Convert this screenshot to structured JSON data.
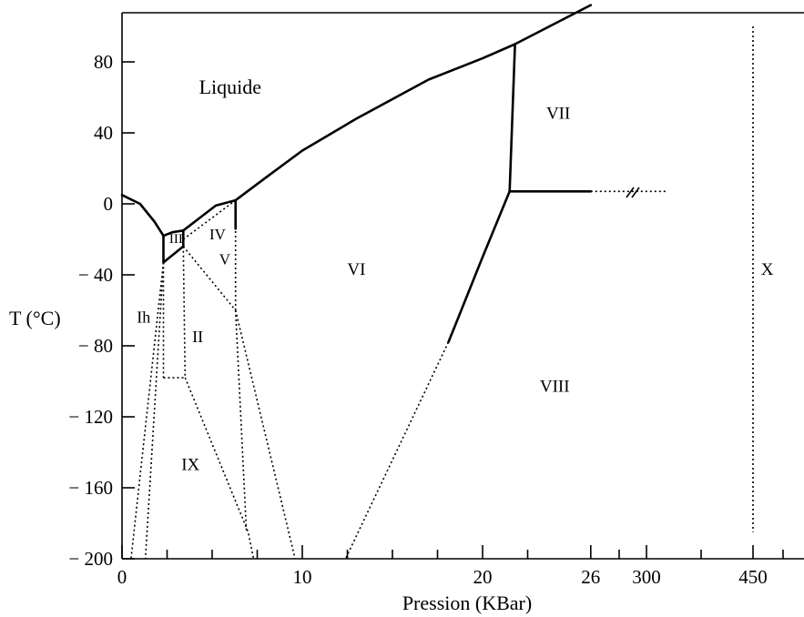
{
  "chart_data": {
    "type": "line",
    "title": "",
    "xlabel": "Pression (KBar)",
    "ylabel": "T (°C)",
    "ylim": [
      -200,
      105
    ],
    "y_ticks": [
      80,
      40,
      0,
      -40,
      -80,
      -120,
      -160,
      -200
    ],
    "y_tick_labels": [
      "80",
      "40",
      "0",
      "− 40",
      "− 80",
      "− 120",
      "− 160",
      "− 200"
    ],
    "x_ticks": [
      0,
      10,
      20,
      26,
      300,
      450
    ],
    "x_tick_labels": [
      "0",
      "10",
      "20",
      "26",
      "300",
      "450"
    ],
    "x_axis_note": "non-linear axis: linear 0–26 kbar, then compressed segment to 300 and 450",
    "grid": false,
    "legend": "none",
    "regions": [
      {
        "label": "Liquide",
        "p": 6,
        "t": 62
      },
      {
        "label": "Ih",
        "p": 1.2,
        "t": -67
      },
      {
        "label": "III",
        "p": 3.0,
        "t": -22
      },
      {
        "label": "II",
        "p": 4.2,
        "t": -78
      },
      {
        "label": "IV",
        "p": 5.3,
        "t": -20
      },
      {
        "label": "V",
        "p": 5.7,
        "t": -34
      },
      {
        "label": "IX",
        "p": 3.8,
        "t": -150
      },
      {
        "label": "VI",
        "p": 13,
        "t": -40
      },
      {
        "label": "VII",
        "p": 24.2,
        "t": 48
      },
      {
        "label": "VIII",
        "p": 24.0,
        "t": -106
      },
      {
        "label": "X",
        "p": 470,
        "t": -40
      }
    ],
    "boundaries_solid": [
      {
        "name": "Ih–Liquide",
        "points": [
          [
            0,
            5
          ],
          [
            1.0,
            0
          ],
          [
            1.8,
            -10
          ],
          [
            2.3,
            -18
          ]
        ]
      },
      {
        "name": "III–Liquide",
        "points": [
          [
            2.3,
            -18
          ],
          [
            2.8,
            -16
          ],
          [
            3.4,
            -15
          ]
        ]
      },
      {
        "name": "V–Liquide",
        "points": [
          [
            3.4,
            -15
          ],
          [
            4.3,
            -8
          ],
          [
            5.2,
            -1
          ],
          [
            6.3,
            2
          ]
        ]
      },
      {
        "name": "VI–Liquide",
        "points": [
          [
            6.3,
            2
          ],
          [
            8,
            15
          ],
          [
            10,
            30
          ],
          [
            13,
            48
          ],
          [
            17,
            70
          ],
          [
            20,
            82
          ],
          [
            21.8,
            90
          ],
          [
            26,
            112
          ]
        ]
      },
      {
        "name": "VII–Liquide",
        "points": [
          [
            21.8,
            90
          ],
          [
            21.5,
            7
          ]
        ]
      },
      {
        "name": "VI–VII",
        "points": [
          [
            21.5,
            7
          ],
          [
            23,
            7
          ],
          [
            24.5,
            7
          ],
          [
            26,
            7
          ]
        ]
      },
      {
        "name": "VI–VIII",
        "points": [
          [
            21.5,
            7
          ],
          [
            20,
            -30
          ],
          [
            18.5,
            -68
          ],
          [
            18.1,
            -78
          ]
        ]
      },
      {
        "name": "Ih–III (left)",
        "points": [
          [
            2.3,
            -18
          ],
          [
            2.3,
            -33
          ]
        ]
      },
      {
        "name": "Ih–II",
        "points": [
          [
            2.3,
            -33
          ],
          [
            3.4,
            -24
          ]
        ]
      },
      {
        "name": "III–V",
        "points": [
          [
            3.4,
            -15
          ],
          [
            3.4,
            -24
          ]
        ]
      },
      {
        "name": "V–VI",
        "points": [
          [
            6.3,
            2
          ],
          [
            6.3,
            -14
          ]
        ]
      }
    ],
    "boundaries_dotted": [
      {
        "name": "Ih–IX left",
        "points": [
          [
            2.3,
            -33
          ],
          [
            0.5,
            -200
          ]
        ]
      },
      {
        "name": "II–IX left",
        "points": [
          [
            2.3,
            -33
          ],
          [
            1.3,
            -200
          ]
        ]
      },
      {
        "name": "IX top",
        "points": [
          [
            2.3,
            -98
          ],
          [
            3.5,
            -98
          ]
        ]
      },
      {
        "name": "II left",
        "points": [
          [
            2.3,
            -33
          ],
          [
            2.3,
            -98
          ]
        ]
      },
      {
        "name": "II–IX right",
        "points": [
          [
            3.4,
            -24
          ],
          [
            3.5,
            -98
          ]
        ]
      },
      {
        "name": "IX–VI",
        "points": [
          [
            3.5,
            -98
          ],
          [
            7.0,
            -185
          ],
          [
            7.3,
            -200
          ]
        ]
      },
      {
        "name": "IV–V",
        "points": [
          [
            3.4,
            -20
          ],
          [
            6.3,
            2
          ]
        ]
      },
      {
        "name": "II–V",
        "points": [
          [
            3.4,
            -24
          ],
          [
            6.3,
            -60
          ]
        ]
      },
      {
        "name": "V–VI low",
        "points": [
          [
            6.3,
            -60
          ],
          [
            6.3,
            -14
          ]
        ]
      },
      {
        "name": "VI lower left",
        "points": [
          [
            6.3,
            -60
          ],
          [
            6.9,
            -184
          ]
        ]
      },
      {
        "name": "VI lower right",
        "points": [
          [
            6.3,
            -60
          ],
          [
            9.6,
            -200
          ]
        ]
      },
      {
        "name": "VI–VIII low",
        "points": [
          [
            18.1,
            -78
          ],
          [
            12.4,
            -200
          ]
        ]
      },
      {
        "name": "VII–VIII extension",
        "points": [
          [
            26,
            7
          ],
          [
            300,
            7
          ],
          [
            330,
            7
          ]
        ]
      },
      {
        "name": "X boundary",
        "points": [
          [
            450,
            100
          ],
          [
            450,
            -185
          ]
        ]
      }
    ]
  }
}
